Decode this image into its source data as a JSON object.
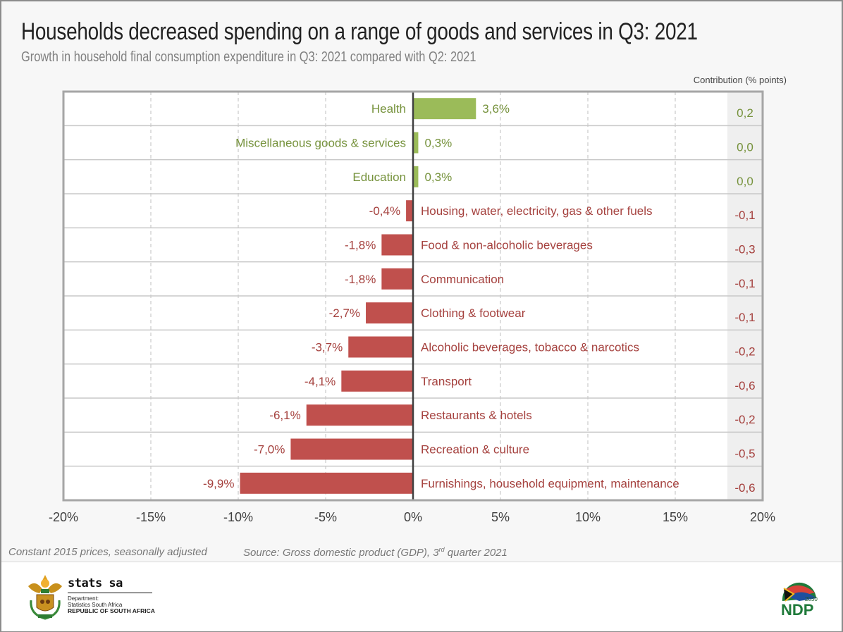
{
  "header": {
    "title": "Households decreased spending on a range of goods and services in Q3: 2021",
    "subtitle": "Growth in household final consumption expenditure in Q3: 2021 compared with Q2: 2021",
    "contribution_heading": "Contribution (% points)"
  },
  "colors": {
    "positive": "#9bbb59",
    "positive_text": "#76923c",
    "negative": "#c0504d",
    "negative_text": "#a5413e",
    "axis_text": "#404040",
    "gridline": "#bfbfbf",
    "contribution_bg": "#efefef"
  },
  "chart_data": {
    "type": "bar",
    "orientation": "horizontal",
    "title": "Households decreased spending on a range of goods and services in Q3: 2021",
    "subtitle": "Growth in household final consumption expenditure in Q3: 2021 compared with Q2: 2021",
    "xlabel": "",
    "ylabel": "",
    "xlim": [
      -20,
      20
    ],
    "x_ticks": [
      -20,
      -15,
      -10,
      -5,
      0,
      5,
      10,
      15,
      20
    ],
    "x_tick_labels": [
      "-20%",
      "-15%",
      "-10%",
      "-5%",
      "0%",
      "5%",
      "10%",
      "15%",
      "20%"
    ],
    "grid": "vertical dashed",
    "categories": [
      "Health",
      "Miscellaneous goods & services",
      "Education",
      "Housing, water, electricity, gas & other fuels",
      "Food & non-alcoholic beverages",
      "Communication",
      "Clothing & footwear",
      "Alcoholic beverages, tobacco & narcotics",
      "Transport",
      "Restaurants & hotels",
      "Recreation & culture",
      "Furnishings, household equipment, maintenance"
    ],
    "values": [
      3.6,
      0.3,
      0.3,
      -0.4,
      -1.8,
      -1.8,
      -2.7,
      -3.7,
      -4.1,
      -6.1,
      -7.0,
      -9.9
    ],
    "value_labels": [
      "3,6%",
      "0,3%",
      "0,3%",
      "-0,4%",
      "-1,8%",
      "-1,8%",
      "-2,7%",
      "-3,7%",
      "-4,1%",
      "-6,1%",
      "-7,0%",
      "-9,9%"
    ],
    "contribution_title": "Contribution (% points)",
    "contributions": [
      0.2,
      0.0,
      0.0,
      -0.1,
      -0.3,
      -0.1,
      -0.1,
      -0.2,
      -0.6,
      -0.2,
      -0.5,
      -0.6
    ],
    "contribution_labels": [
      "0,2",
      "0,0",
      "0,0",
      "-0,1",
      "-0,3",
      "-0,1",
      "-0,1",
      "-0,2",
      "-0,6",
      "-0,2",
      "-0,5",
      "-0,6"
    ]
  },
  "footer": {
    "note": "Constant 2015 prices, seasonally adjusted",
    "source_prefix": "Source: Gross domestic product (GDP), 3",
    "source_sup": "rd",
    "source_suffix": " quarter 2021"
  },
  "logos": {
    "stats_brand": "stats sa",
    "stats_line1": "Department:",
    "stats_line2": "Statistics South Africa",
    "stats_line3": "REPUBLIC OF SOUTH AFRICA",
    "ndp_year": "2030",
    "ndp_text": "NDP"
  }
}
